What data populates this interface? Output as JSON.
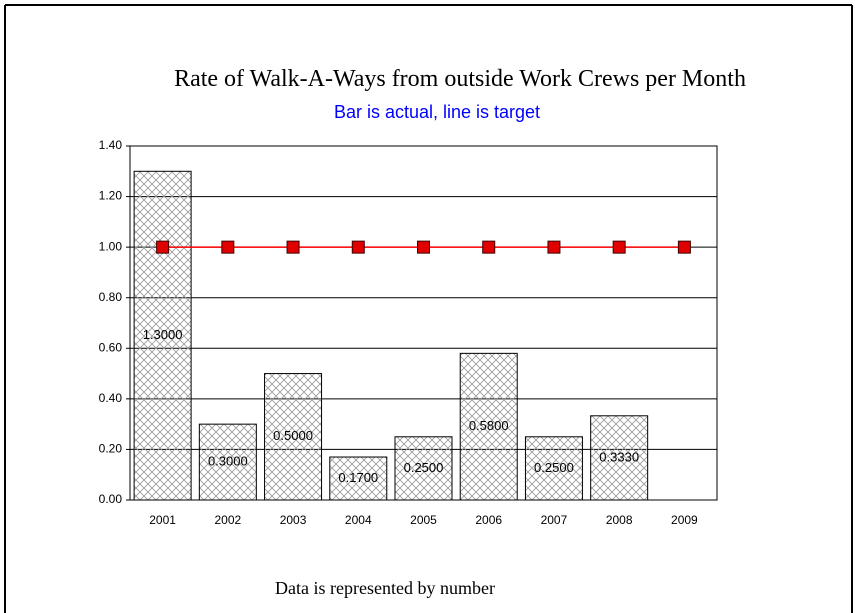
{
  "chart_data": {
    "type": "bar",
    "title": "Rate of Walk-A-Ways from outside Work Crews per Month",
    "subtitle": "Bar is actual, line is target",
    "footer": "Data is represented by number",
    "categories": [
      "2001",
      "2002",
      "2003",
      "2004",
      "2005",
      "2006",
      "2007",
      "2008",
      "2009"
    ],
    "series": [
      {
        "name": "Actual",
        "type": "bar",
        "color": "#999999",
        "values": [
          1.3,
          0.3,
          0.5,
          0.17,
          0.25,
          0.58,
          0.25,
          0.333,
          null
        ],
        "value_labels": [
          "1.3000",
          "0.3000",
          "0.5000",
          "0.1700",
          "0.2500",
          "0.5800",
          "0.2500",
          "0.3330",
          null
        ]
      },
      {
        "name": "Target",
        "type": "line",
        "color": "#ff0000",
        "values": [
          1.0,
          1.0,
          1.0,
          1.0,
          1.0,
          1.0,
          1.0,
          1.0,
          1.0
        ]
      }
    ],
    "ylim": [
      0,
      1.4
    ],
    "yticks": [
      {
        "value": 0,
        "label": "0.00"
      },
      {
        "value": 0.2,
        "label": "0.20"
      },
      {
        "value": 0.4,
        "label": "0.40"
      },
      {
        "value": 0.6,
        "label": "0.60"
      },
      {
        "value": 0.8,
        "label": "0.80"
      },
      {
        "value": 1.0,
        "label": "1.00"
      },
      {
        "value": 1.2,
        "label": "1.20"
      },
      {
        "value": 1.4,
        "label": "1.40"
      }
    ],
    "grid": true
  }
}
